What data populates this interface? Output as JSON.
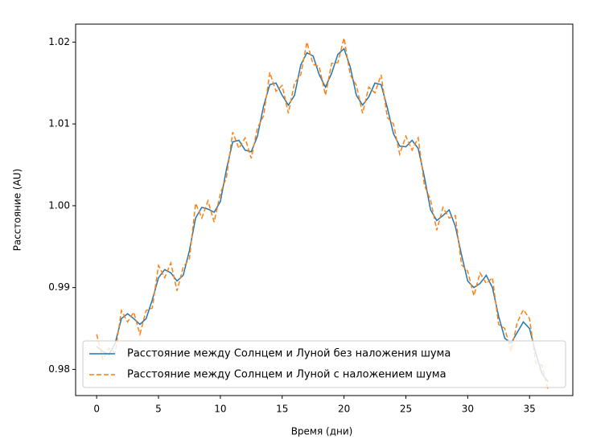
{
  "chart_data": {
    "type": "line",
    "xlabel": "Время (дни)",
    "ylabel": "Расстояние (AU)",
    "x": [
      0,
      0.5,
      1,
      1.5,
      2,
      2.5,
      3,
      3.5,
      4,
      4.5,
      5,
      5.5,
      6,
      6.5,
      7,
      7.5,
      8,
      8.5,
      9,
      9.5,
      10,
      10.5,
      11,
      11.5,
      12,
      12.5,
      13,
      13.5,
      14,
      14.5,
      15,
      15.5,
      16,
      16.5,
      17,
      17.5,
      18,
      18.5,
      19,
      19.5,
      20,
      20.5,
      21,
      21.5,
      22,
      22.5,
      23,
      23.5,
      24,
      24.5,
      25,
      25.5,
      26,
      26.5,
      27,
      27.5,
      28,
      28.5,
      29,
      29.5,
      30,
      30.5,
      31,
      31.5,
      32,
      32.5,
      33,
      33.5,
      34,
      34.5,
      35,
      35.5,
      36,
      36.5
    ],
    "series": [
      {
        "name": "Расстояние между Солнцем и Луной без наложения шума",
        "color": "#1f77b4",
        "linestyle": "solid",
        "values": [
          0.9828,
          0.9822,
          0.9818,
          0.9832,
          0.9862,
          0.9868,
          0.9862,
          0.9855,
          0.9862,
          0.9885,
          0.9912,
          0.9922,
          0.9918,
          0.9908,
          0.9915,
          0.9945,
          0.9985,
          0.9998,
          0.9996,
          0.9992,
          1.0005,
          1.0045,
          1.0078,
          1.008,
          1.0068,
          1.0066,
          1.0085,
          1.0122,
          1.0148,
          1.015,
          1.0135,
          1.0123,
          1.0135,
          1.0172,
          1.0187,
          1.0183,
          1.016,
          1.0145,
          1.0162,
          1.0185,
          1.0192,
          1.017,
          1.0135,
          1.0123,
          1.0133,
          1.015,
          1.0148,
          1.012,
          1.0088,
          1.0073,
          1.0072,
          1.008,
          1.007,
          1.0035,
          0.9995,
          0.9982,
          0.9988,
          0.9995,
          0.9975,
          0.994,
          0.9908,
          0.99,
          0.9905,
          0.9915,
          0.99,
          0.9865,
          0.9838,
          0.9832,
          0.9845,
          0.9858,
          0.985,
          0.982,
          0.9795,
          0.9785
        ]
      },
      {
        "name": "Расстояние между Солнцем и Луной с наложением шума",
        "color": "#ff7f0e",
        "linestyle": "dashed",
        "values": [
          0.9843,
          0.9812,
          0.9826,
          0.982,
          0.9872,
          0.9858,
          0.987,
          0.9843,
          0.9872,
          0.9875,
          0.9927,
          0.9912,
          0.993,
          0.9896,
          0.9925,
          0.9935,
          1.0003,
          0.9985,
          1.0006,
          0.998,
          1.0015,
          1.0035,
          1.009,
          1.007,
          1.0083,
          1.0058,
          1.0095,
          1.011,
          1.0163,
          1.014,
          1.0147,
          1.0113,
          1.015,
          1.016,
          1.02,
          1.0173,
          1.017,
          1.0135,
          1.0174,
          1.0175,
          1.0205,
          1.016,
          1.0147,
          1.0113,
          1.0145,
          1.0138,
          1.016,
          1.0108,
          1.01,
          1.0063,
          1.0085,
          1.0068,
          1.0083,
          1.0025,
          1.0007,
          0.997,
          0.9998,
          0.9985,
          0.9988,
          0.9928,
          0.992,
          0.989,
          0.9918,
          0.9905,
          0.9912,
          0.9855,
          0.985,
          0.9822,
          0.9857,
          0.9873,
          0.9862,
          0.9808,
          0.9805,
          0.9775
        ]
      }
    ],
    "xlim": [
      -1.7,
      38.5
    ],
    "ylim": [
      0.9768,
      1.0222
    ],
    "xticks": [
      0,
      5,
      10,
      15,
      20,
      25,
      30,
      35
    ],
    "yticks": [
      0.98,
      0.99,
      {
        "value": 1,
        "label": "1.00"
      },
      1.01,
      1.02
    ],
    "legend": "lower center",
    "grid": false
  }
}
